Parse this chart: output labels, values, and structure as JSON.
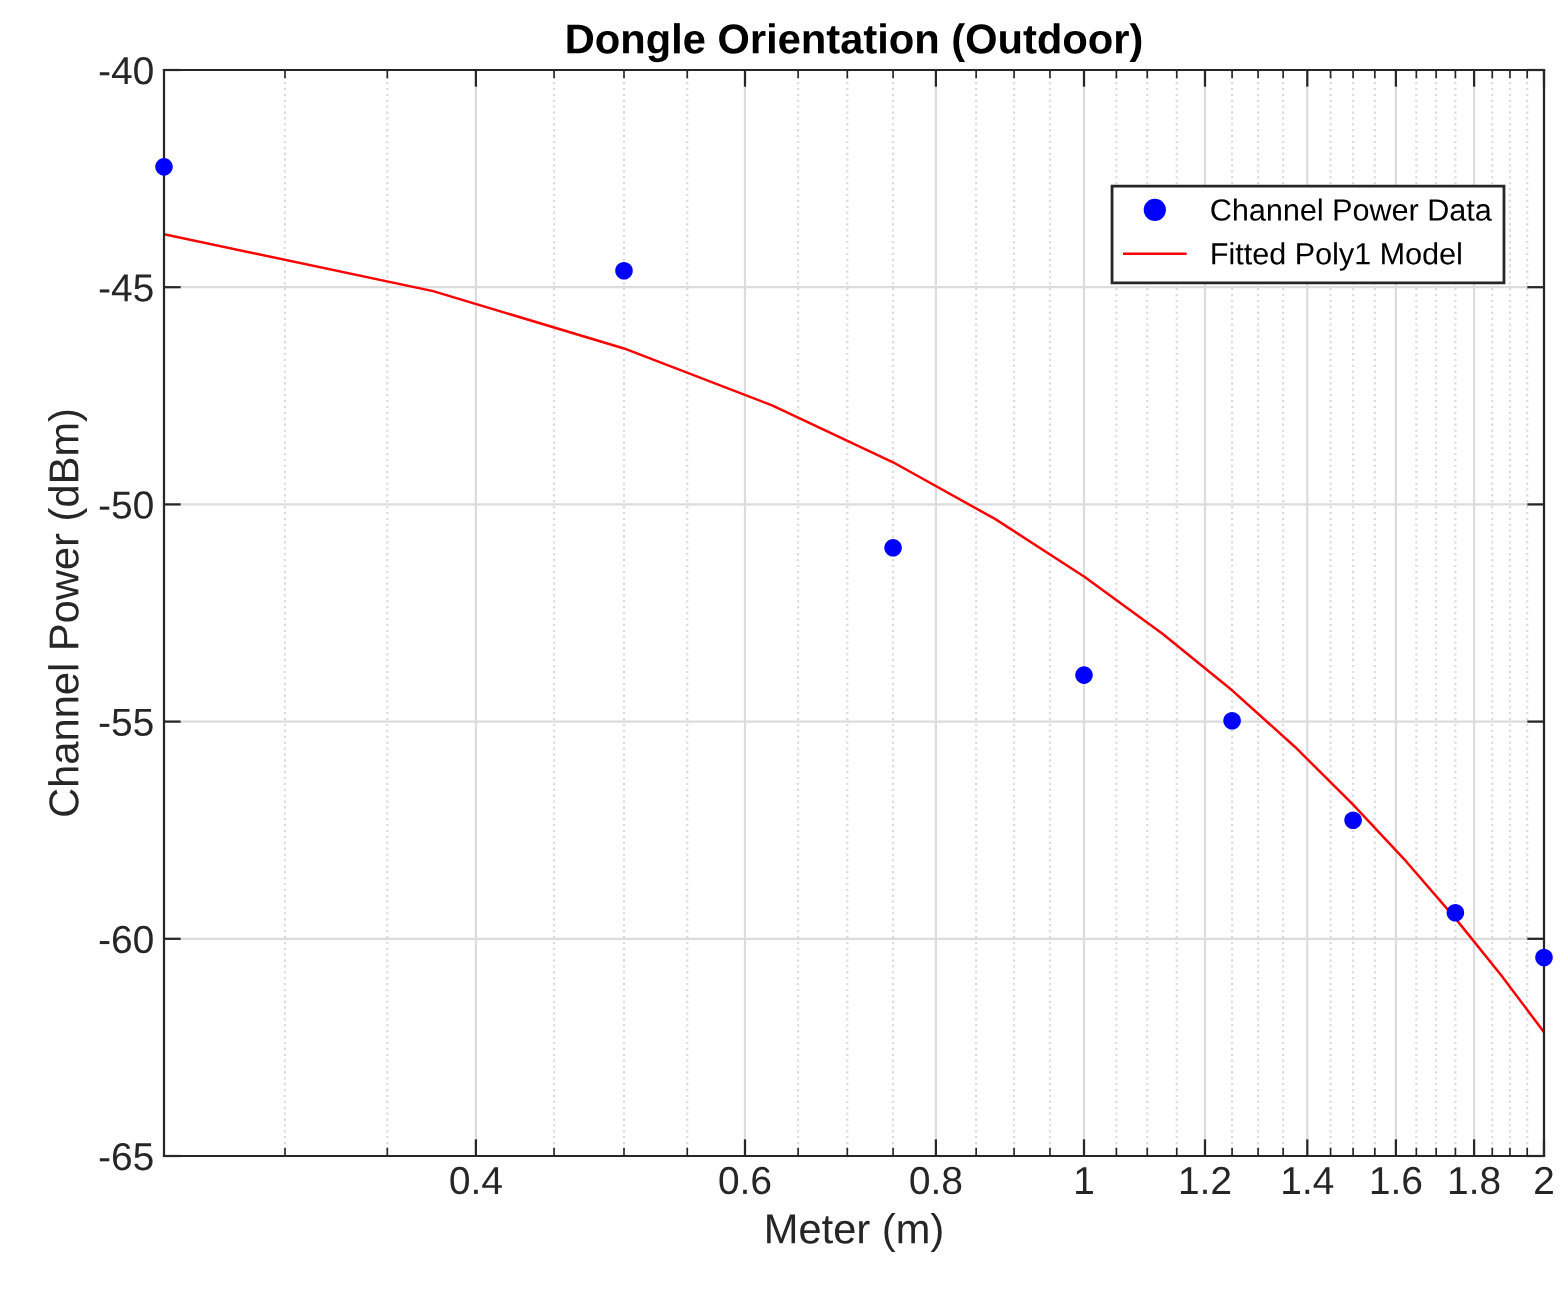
{
  "chart_data": {
    "type": "scatter",
    "title": "Dongle Orientation (Outdoor)",
    "xlabel": "Meter (m)",
    "ylabel": "Channel Power (dBm)",
    "x": [
      0.25,
      0.5,
      0.75,
      1,
      1.25,
      1.5,
      1.75,
      2
    ],
    "series": [
      {
        "name": "Channel Power Data",
        "color": "#0000ff",
        "marker": "circle",
        "values": [
          -42.23,
          -44.62,
          -51.0,
          -53.93,
          -54.98,
          -57.27,
          -59.4,
          -60.43
        ]
      },
      {
        "name": "Fitted Poly1 Model",
        "type": "line",
        "color": "#ff0000",
        "marker": "none",
        "line_style": "solid",
        "x": [
          0.25,
          0.375,
          0.5,
          0.625,
          0.75,
          0.875,
          1,
          1.125,
          1.25,
          1.375,
          1.5,
          1.625,
          1.75,
          1.875,
          2
        ],
        "values": [
          -43.78,
          -45.09,
          -46.41,
          -47.72,
          -49.03,
          -50.34,
          -51.66,
          -52.97,
          -54.28,
          -55.59,
          -56.91,
          -58.22,
          -59.53,
          -60.84,
          -62.15
        ]
      }
    ],
    "log": "x",
    "xlim": [
      0.25,
      2
    ],
    "xticks": [
      {
        "value": 0.3,
        "label": null
      },
      {
        "value": 0.35,
        "label": null
      },
      0.4,
      {
        "value": 0.45,
        "label": null
      },
      {
        "value": 0.5,
        "label": null
      },
      {
        "value": 0.55,
        "label": null
      },
      0.6,
      {
        "value": 0.65,
        "label": null
      },
      {
        "value": 0.7,
        "label": null
      },
      {
        "value": 0.75,
        "label": null
      },
      0.8,
      {
        "value": 0.85,
        "label": null
      },
      {
        "value": 0.9,
        "label": null
      },
      {
        "value": 0.95,
        "label": null
      },
      1,
      {
        "value": 1.05,
        "label": null
      },
      {
        "value": 1.1,
        "label": null
      },
      {
        "value": 1.15,
        "label": null
      },
      1.2,
      {
        "value": 1.25,
        "label": null
      },
      {
        "value": 1.3,
        "label": null
      },
      {
        "value": 1.35,
        "label": null
      },
      1.4,
      {
        "value": 1.45,
        "label": null
      },
      {
        "value": 1.5,
        "label": null
      },
      {
        "value": 1.55,
        "label": null
      },
      1.6,
      {
        "value": 1.65,
        "label": null
      },
      {
        "value": 1.7,
        "label": null
      },
      {
        "value": 1.75,
        "label": null
      },
      1.8,
      {
        "value": 1.85,
        "label": null
      },
      {
        "value": 1.9,
        "label": null
      },
      {
        "value": 1.95,
        "label": null
      },
      2
    ],
    "ylim": [
      -65,
      -40
    ],
    "yticks": [
      -65,
      -60,
      -55,
      -50,
      -45,
      -40
    ],
    "grid": true,
    "legend": "top right"
  }
}
